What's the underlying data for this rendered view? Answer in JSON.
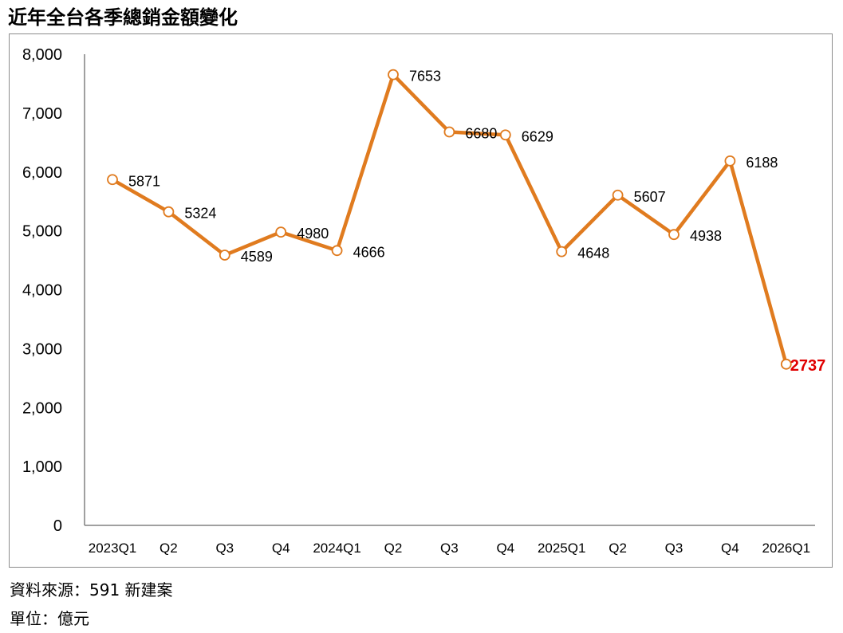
{
  "title": "近年全台各季總銷金額變化",
  "footer": {
    "source": "資料來源：591 新建案",
    "unit": "單位：億元"
  },
  "colors": {
    "line": "#E07B1F",
    "marker_fill": "#FFFFFF",
    "highlight_label": "#E00000",
    "axis": "#808080",
    "frame": "#8C8C8C"
  },
  "chart_data": {
    "type": "line",
    "categories": [
      "2023Q1",
      "Q2",
      "Q3",
      "Q4",
      "2024Q1",
      "Q2",
      "Q3",
      "Q4",
      "2025Q1",
      "Q2",
      "Q3",
      "Q4",
      "2026Q1"
    ],
    "values": [
      5871,
      5324,
      4589,
      4980,
      4666,
      7653,
      6680,
      6629,
      4648,
      5607,
      4938,
      6188,
      2737
    ],
    "data_labels": [
      "5871",
      "5324",
      "4589",
      "4980",
      "4666",
      "7653",
      "6680",
      "6629",
      "4648",
      "5607",
      "4938",
      "6188",
      "2737"
    ],
    "highlighted_index": 12,
    "ylim": [
      0,
      8000
    ],
    "yticks": [
      "0",
      "1,000",
      "2,000",
      "3,000",
      "4,000",
      "5,000",
      "6,000",
      "7,000",
      "8,000"
    ],
    "grid": false,
    "legend": "none"
  }
}
